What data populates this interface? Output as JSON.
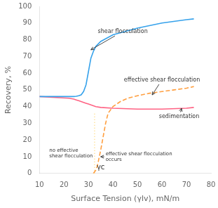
{
  "chart_data": {
    "type": "line",
    "xlabel": "Surface Tension (γlv), mN/m",
    "ylabel": "Recovery, %",
    "xlim": [
      10,
      80
    ],
    "ylim": [
      0,
      100
    ],
    "xticks": [
      10,
      20,
      30,
      40,
      50,
      60,
      70,
      80
    ],
    "yticks": [
      0,
      10,
      20,
      30,
      40,
      50,
      60,
      70,
      80,
      90,
      100
    ],
    "grid": false,
    "series": [
      {
        "x": [
          10,
          22,
          24,
          25,
          26,
          27,
          28,
          29,
          30,
          31,
          32,
          33,
          35,
          40,
          50,
          60,
          70,
          73
        ],
        "values": [
          46,
          46,
          46,
          46.2,
          46.5,
          47,
          49,
          53,
          61,
          69,
          73,
          76,
          79,
          83,
          87,
          90,
          92,
          92.5
        ],
        "line_style": "solid"
      },
      {
        "x": [
          10,
          22,
          24,
          25,
          26,
          27,
          28,
          29,
          30,
          31,
          32,
          33,
          35,
          40,
          50,
          60,
          70,
          73
        ],
        "values": [
          46,
          45,
          44.5,
          44,
          43.5,
          43,
          42.5,
          42,
          41.5,
          41,
          40.5,
          40,
          39.5,
          39,
          38.5,
          38.5,
          39,
          39.5
        ],
        "line_style": "solid"
      },
      {
        "x": [
          32,
          32.5,
          33,
          33.5,
          34,
          35,
          36,
          37,
          38,
          40,
          43,
          46,
          50,
          55,
          60,
          65,
          70,
          73
        ],
        "values": [
          0,
          1,
          2,
          4,
          7,
          14,
          22,
          30,
          36,
          40,
          43,
          45,
          46.5,
          48,
          49,
          50,
          51,
          52
        ],
        "line_style": "dashed"
      },
      {
        "x": [
          32.5,
          32.5
        ],
        "values": [
          0,
          36
        ],
        "line_style": "dotted"
      }
    ],
    "annotations": [
      {
        "text": "shear flocculation",
        "x": 44,
        "y": 84,
        "arrow_x": 31,
        "arrow_y": 74
      },
      {
        "text": "effective shear flocculation",
        "x": 60,
        "y": 55,
        "arrow_x": 56,
        "arrow_y": 47
      },
      {
        "text": "sedimentation",
        "x": 67,
        "y": 33,
        "arrow_x": 68,
        "arrow_y": 39
      },
      {
        "text": "no effective\nshear flocculation",
        "x": 14,
        "y": 12,
        "arrow_x": 27,
        "arrow_y": 10
      },
      {
        "text": "effective shear flocculation\noccurs",
        "x": 37,
        "y": 10,
        "arrow_x": 35,
        "arrow_y": 10
      },
      {
        "text": "γc",
        "x": 32.5,
        "y": 1.5
      }
    ]
  }
}
